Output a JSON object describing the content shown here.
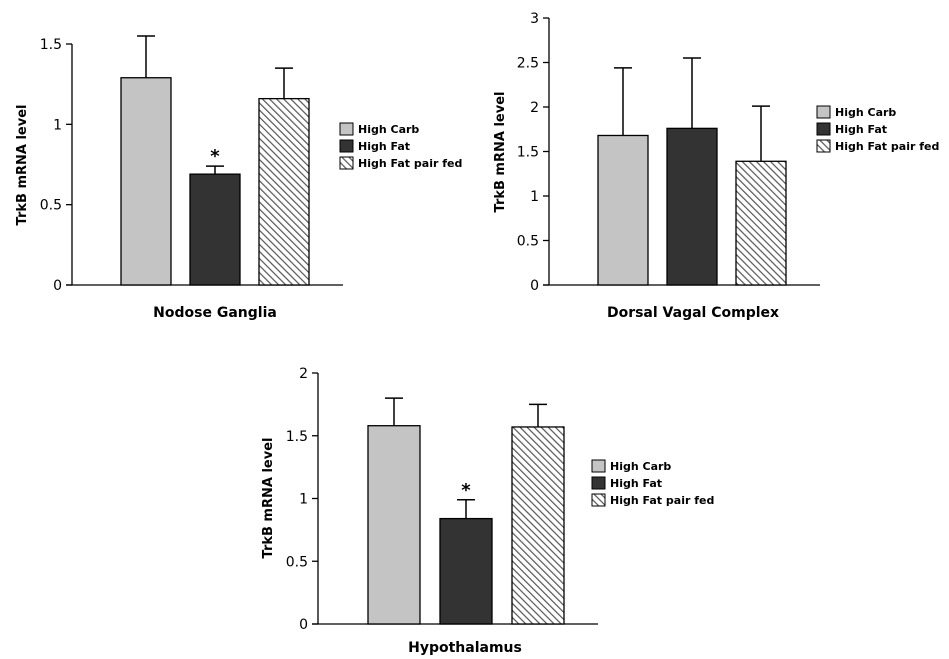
{
  "chart_data": [
    {
      "type": "bar",
      "categories": [
        "High Carb",
        "High Fat",
        "High Fat pair fed"
      ],
      "series": [
        {
          "values": [
            1.29,
            0.69,
            1.16
          ],
          "errors": [
            0.26,
            0.05,
            0.19
          ]
        }
      ],
      "significance": [
        "",
        "*",
        ""
      ],
      "xlabel": "Nodose Ganglia",
      "ylabel": "TrkB mRNA level",
      "ylim": [
        0,
        1.5
      ],
      "yticks": [
        0,
        0.5,
        1,
        1.5
      ],
      "ytick_labels": [
        "0",
        "0.5",
        "1",
        "1.5"
      ],
      "legend": [
        "High Carb",
        "High Fat",
        "High Fat pair fed"
      ],
      "legend_position": "right",
      "grid": false
    },
    {
      "type": "bar",
      "categories": [
        "High Carb",
        "High Fat",
        "High Fat pair fed"
      ],
      "series": [
        {
          "values": [
            1.68,
            1.76,
            1.39
          ],
          "errors": [
            0.76,
            0.79,
            0.62
          ]
        }
      ],
      "significance": [
        "",
        "",
        ""
      ],
      "xlabel": "Dorsal Vagal Complex",
      "ylabel": "TrkB mRNA level",
      "ylim": [
        0,
        3
      ],
      "yticks": [
        0,
        0.5,
        1,
        1.5,
        2,
        2.5,
        3
      ],
      "ytick_labels": [
        "0",
        "0.5",
        "1",
        "1.5",
        "2",
        "2.5",
        "3"
      ],
      "legend": [
        "High Carb",
        "High Fat",
        "High Fat pair fed"
      ],
      "legend_position": "right",
      "grid": false
    },
    {
      "type": "bar",
      "categories": [
        "High Carb",
        "High Fat",
        "High Fat pair fed"
      ],
      "series": [
        {
          "values": [
            1.58,
            0.84,
            1.57
          ],
          "errors": [
            0.22,
            0.15,
            0.18
          ]
        }
      ],
      "significance": [
        "",
        "*",
        ""
      ],
      "xlabel": "Hypothalamus",
      "ylabel": "TrkB mRNA level",
      "ylim": [
        0,
        2
      ],
      "yticks": [
        0,
        0.5,
        1,
        1.5,
        2
      ],
      "ytick_labels": [
        "0",
        "0.5",
        "1",
        "1.5",
        "2"
      ],
      "legend": [
        "High Carb",
        "High Fat",
        "High Fat pair fed"
      ],
      "legend_position": "right",
      "grid": false
    }
  ],
  "colors": {
    "high_carb": "#c4c4c4",
    "high_fat": "#333333",
    "hatch_stroke": "#555555",
    "hatch_bg": "#ffffff"
  }
}
